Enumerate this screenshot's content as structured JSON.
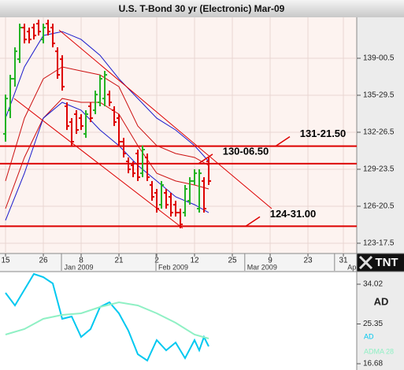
{
  "chart_data": [
    {
      "type": "ohlc",
      "title": "U.S. T-Bond 30 yr (Electronic) Mar-09",
      "x": [
        0,
        1,
        2,
        3,
        4,
        5,
        6,
        7,
        8,
        9,
        10,
        11,
        12,
        13,
        14,
        15,
        16,
        17,
        18,
        19,
        20,
        21,
        22,
        23,
        24,
        25,
        26,
        27,
        28,
        29,
        30,
        31,
        32,
        33,
        34,
        35,
        36,
        37,
        38,
        39,
        40,
        41,
        42,
        43
      ],
      "open": [
        132.69,
        134.67,
        137.3,
        138.94,
        141.58,
        141.25,
        141.58,
        141.91,
        140.59,
        141.91,
        141.58,
        139.6,
        138.94,
        135.0,
        133.68,
        134.34,
        134.01,
        132.69,
        135.0,
        134.67,
        135.33,
        135.65,
        135.98,
        134.67,
        134.01,
        132.04,
        130.39,
        130.06,
        131.05,
        129.4,
        130.72,
        128.42,
        127.76,
        126.77,
        127.76,
        127.43,
        126.77,
        126.11,
        126.11,
        127.1,
        128.75,
        126.44,
        128.75,
        130.39
      ],
      "high": [
        135.98,
        137.63,
        139.93,
        141.91,
        141.91,
        141.58,
        141.91,
        142.24,
        141.91,
        142.24,
        141.91,
        139.93,
        139.27,
        135.33,
        134.01,
        134.67,
        134.34,
        134.67,
        135.33,
        136.31,
        137.63,
        137.96,
        136.31,
        135.0,
        134.34,
        132.36,
        130.72,
        130.39,
        131.38,
        131.71,
        131.05,
        128.75,
        128.09,
        128.75,
        128.09,
        127.76,
        127.1,
        126.44,
        128.42,
        129.07,
        129.73,
        129.73,
        129.07,
        130.72
      ],
      "low": [
        132.04,
        134.01,
        136.64,
        138.62,
        140.26,
        140.26,
        140.59,
        140.92,
        140.26,
        140.92,
        139.93,
        137.3,
        136.31,
        133.02,
        131.71,
        132.69,
        133.02,
        132.36,
        133.68,
        134.34,
        135.0,
        135.0,
        135.0,
        133.35,
        131.71,
        130.72,
        129.4,
        129.07,
        128.75,
        129.07,
        128.75,
        127.1,
        126.11,
        126.44,
        126.44,
        125.78,
        125.78,
        124.8,
        125.78,
        126.77,
        128.42,
        126.11,
        126.11,
        128.42
      ],
      "close": [
        135.65,
        137.3,
        139.6,
        141.58,
        140.59,
        140.59,
        140.92,
        141.25,
        141.58,
        141.25,
        140.26,
        137.63,
        136.64,
        133.35,
        132.04,
        133.02,
        133.35,
        134.34,
        134.01,
        135.98,
        137.3,
        137.63,
        135.33,
        133.68,
        132.04,
        131.05,
        129.73,
        129.4,
        129.07,
        131.38,
        129.07,
        127.43,
        126.44,
        128.42,
        126.77,
        126.11,
        126.11,
        125.13,
        128.09,
        128.75,
        129.4,
        129.4,
        126.44,
        128.75
      ],
      "up_color": "#22b322",
      "down_color": "#dd0000",
      "xlim": [
        -1.17,
        74.33
      ],
      "xticks": [
        {
          "value": 0,
          "label": "15"
        },
        {
          "value": 8,
          "label": "26"
        },
        {
          "value": 16,
          "label": "8"
        },
        {
          "value": 24,
          "label": "21"
        },
        {
          "value": 32,
          "label": "2"
        },
        {
          "value": 40,
          "label": "12"
        },
        {
          "value": 48,
          "label": "25"
        },
        {
          "value": 56,
          "label": "9"
        },
        {
          "value": 64,
          "label": "23"
        },
        {
          "value": 71.5,
          "label": "31"
        }
      ],
      "month_labels": [
        {
          "value": 15.5,
          "label": "Jan 2009"
        },
        {
          "value": 35.5,
          "label": "Feb 2009"
        },
        {
          "value": 54.3,
          "label": "Mar 2009"
        },
        {
          "value": 73.3,
          "label": "Ap"
        }
      ],
      "ylim": [
        122.69,
        142.44
      ],
      "yticks": [
        {
          "value": 139.015625,
          "label": "139-00.5"
        },
        {
          "value": 135.921875,
          "label": "135-29.5"
        },
        {
          "value": 132.828125,
          "label": "132-26.5"
        },
        {
          "value": 129.734375,
          "label": "129-23.5"
        },
        {
          "value": 126.640625,
          "label": "126-20.5"
        },
        {
          "value": 123.546875,
          "label": "123-17.5"
        }
      ],
      "grid": true,
      "overlays": [
        {
          "color": "#1a1acc",
          "x": [
            0,
            4,
            8,
            12,
            16,
            20,
            24,
            28,
            32,
            36,
            40,
            43
          ],
          "values": [
            134.01,
            138.29,
            140.92,
            141.25,
            140.59,
            139.27,
            137.3,
            135.65,
            134.01,
            133.02,
            131.71,
            130.39
          ]
        },
        {
          "color": "#cc1111",
          "x": [
            0,
            4,
            8,
            12,
            16,
            20,
            24,
            28,
            32,
            36,
            40,
            43
          ],
          "values": [
            128.75,
            134.01,
            137.3,
            138.29,
            137.96,
            137.63,
            136.64,
            133.35,
            131.71,
            131.05,
            130.72,
            130.06
          ]
        },
        {
          "color": "#cc1111",
          "x": [
            0,
            4,
            8,
            12,
            16,
            20,
            24,
            28,
            32,
            36,
            40,
            43
          ],
          "values": [
            126.44,
            130.72,
            134.01,
            135.65,
            135.33,
            135.33,
            134.34,
            131.71,
            129.4,
            128.75,
            128.42,
            128.09
          ]
        },
        {
          "color": "#1a1acc",
          "x": [
            0,
            4,
            8,
            12,
            16,
            20,
            24,
            28,
            32,
            36,
            40,
            43
          ],
          "values": [
            125.46,
            129.4,
            134.01,
            135.33,
            134.67,
            133.02,
            131.71,
            130.06,
            128.75,
            127.43,
            126.77,
            126.11
          ]
        }
      ],
      "trendlines": [
        {
          "color": "#dd0000",
          "x": [
            11.33,
            56.33
          ],
          "values": [
            141.38,
            126.44
          ]
        },
        {
          "color": "#dd0000",
          "x": [
            1.83,
            37.5
          ],
          "values": [
            135.65,
            124.8
          ]
        }
      ],
      "levels": [
        {
          "value": 131.671875,
          "label": "131-21.50"
        },
        {
          "value": 130.203125,
          "label": "130-06.50"
        },
        {
          "value": 124.96875,
          "label": "124-31.00"
        }
      ],
      "level_color": "#dd0000",
      "logo": "TNT"
    },
    {
      "type": "line",
      "title": "AD",
      "xlim": [
        -1.17,
        74.33
      ],
      "series": [
        {
          "name": "AD",
          "color": "#00c8f0",
          "x": [
            0,
            2,
            4,
            6,
            8,
            10,
            12,
            14,
            16,
            18,
            20,
            22,
            24,
            26,
            28,
            30,
            32,
            34,
            36,
            38,
            40,
            41,
            42,
            43
          ],
          "values": [
            32.13,
            29.38,
            32.82,
            36.25,
            35.57,
            34.19,
            26.47,
            26.98,
            22.52,
            24.23,
            29.04,
            30.07,
            27.67,
            23.89,
            18.74,
            17.37,
            21.83,
            19.6,
            21.31,
            17.88,
            21.83,
            19.6,
            22.52,
            20.46
          ]
        },
        {
          "name": "ADMA 28",
          "color": "#8ff0c4",
          "x": [
            0,
            4,
            8,
            12,
            16,
            20,
            24,
            28,
            32,
            36,
            40,
            43
          ],
          "values": [
            23.03,
            24.23,
            26.47,
            27.32,
            27.67,
            29.04,
            30.07,
            29.38,
            27.67,
            25.61,
            23.03,
            22.17
          ]
        }
      ],
      "ylim": [
        15.31,
        36.77
      ],
      "yticks": [
        34.02,
        25.35,
        16.68
      ]
    }
  ]
}
